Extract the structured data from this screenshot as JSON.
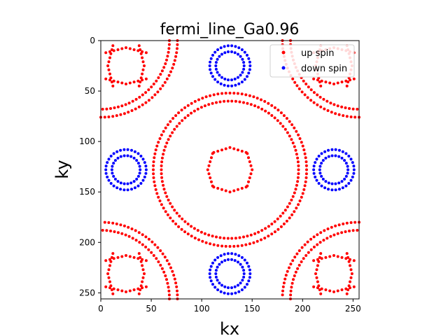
{
  "chart_data": {
    "type": "scatter",
    "title": "fermi_line_Ga0.96",
    "xlabel": "kx",
    "ylabel": "ky",
    "xlim": [
      0,
      256
    ],
    "ylim": [
      256,
      0
    ],
    "y_inverted": true,
    "xticks": [
      0,
      50,
      100,
      150,
      200,
      250
    ],
    "yticks": [
      0,
      50,
      100,
      150,
      200,
      250
    ],
    "grid": false,
    "legend_position": "top-right",
    "series": [
      {
        "name": "up spin",
        "color": "#ff0000",
        "shape_description": "rings of radius ~74 centred on the four corners and the centre (128,128), with cross-shaped clusters near (25,25)-type points",
        "points": []
      },
      {
        "name": "down spin",
        "color": "#0000ff",
        "shape_description": "double rings of radius ~14 and ~21 centred at (128,25), (25,128), (231,128), (128,231)",
        "points": []
      }
    ]
  }
}
